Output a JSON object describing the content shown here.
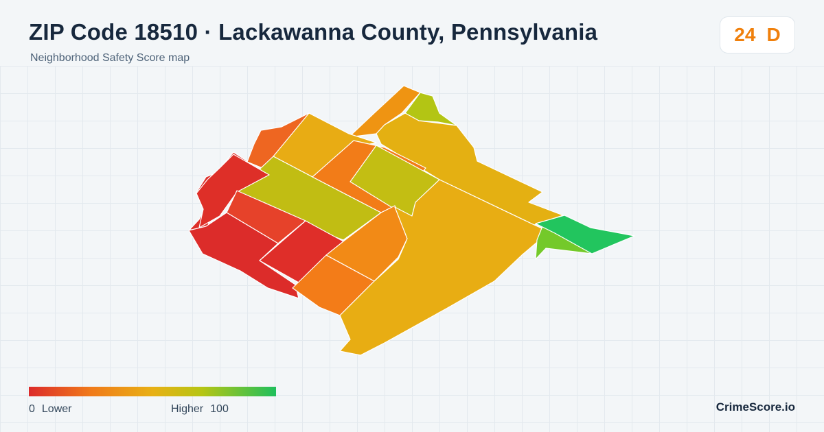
{
  "header": {
    "title": "ZIP Code 18510 · Lackawanna County, Pennsylvania",
    "subtitle": "Neighborhood Safety Score map"
  },
  "score_badge": {
    "score": "24",
    "grade": "D",
    "color": "#f0800c"
  },
  "legend": {
    "min_value": "0",
    "min_label": "Lower",
    "max_label": "Higher",
    "max_value": "100",
    "colors": [
      "#dc2b2b",
      "#f07a1a",
      "#e8b015",
      "#b6c514",
      "#1fbf5c"
    ]
  },
  "brand": "CrimeScore.io",
  "map": {
    "regions": [
      {
        "name": "north-strip",
        "color": "#ef9412"
      },
      {
        "name": "northeast-green-lobe",
        "color": "#b3c514"
      },
      {
        "name": "east-band",
        "color": "#e4b012"
      },
      {
        "name": "northwest-red-edge",
        "color": "#dd2f29"
      },
      {
        "name": "north-orange-block",
        "color": "#ee6621"
      },
      {
        "name": "north-yellow-block",
        "color": "#e8ac14"
      },
      {
        "name": "central-olive-block",
        "color": "#c1bd13"
      },
      {
        "name": "central-orange-block",
        "color": "#f27c18"
      },
      {
        "name": "central-green-block",
        "color": "#c3be13"
      },
      {
        "name": "west-red-block",
        "color": "#de2f28"
      },
      {
        "name": "west-red-orange-block",
        "color": "#e6422a"
      },
      {
        "name": "southwest-red-block",
        "color": "#dc2c2a"
      },
      {
        "name": "south-red-block",
        "color": "#df2e29"
      },
      {
        "name": "south-orange-block",
        "color": "#f37c18"
      },
      {
        "name": "central-orange-strip",
        "color": "#f28a16"
      },
      {
        "name": "southeast-large-yellow",
        "color": "#e8ad13"
      },
      {
        "name": "east-green-lower",
        "color": "#74c92a"
      },
      {
        "name": "east-green-tip",
        "color": "#22c55e"
      }
    ]
  }
}
